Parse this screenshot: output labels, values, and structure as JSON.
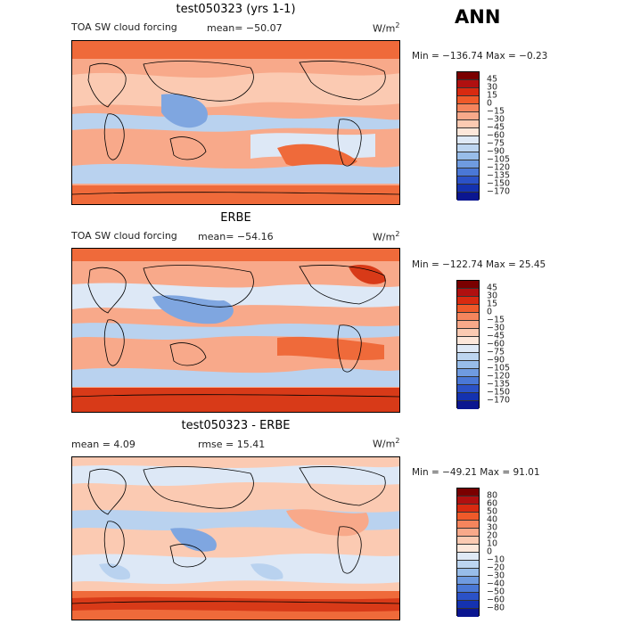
{
  "season": "ANN",
  "unit_prefix": "W/m",
  "unit_exp": "2",
  "panels": [
    {
      "title": "test050323 (yrs 1-1)",
      "left_label": "TOA SW cloud forcing",
      "stat": "mean= −50.07",
      "minmax": "Min = −136.74 Max =  −0.23",
      "colorbar": {
        "labels": [
          "45",
          "30",
          "15",
          "0",
          "−15",
          "−30",
          "−45",
          "−60",
          "−75",
          "−90",
          "−105",
          "−120",
          "−135",
          "−150",
          "−170"
        ],
        "colors": [
          "#7a0000",
          "#b01010",
          "#d82a10",
          "#ef5a2a",
          "#f5855d",
          "#f8a98a",
          "#fbcab2",
          "#fde7da",
          "#dfe9f6",
          "#bdd5f0",
          "#98bde9",
          "#6f9be0",
          "#4a78d6",
          "#2b52c7",
          "#1432b0",
          "#0b1690"
        ]
      }
    },
    {
      "title": "ERBE",
      "left_label": "TOA SW cloud forcing",
      "stat": "mean= −54.16",
      "minmax": "Min = −122.74 Max =  25.45",
      "colorbar": {
        "labels": [
          "45",
          "30",
          "15",
          "0",
          "−15",
          "−30",
          "−45",
          "−60",
          "−75",
          "−90",
          "−105",
          "−120",
          "−135",
          "−150",
          "−170"
        ],
        "colors": [
          "#7a0000",
          "#b01010",
          "#d82a10",
          "#ef5a2a",
          "#f5855d",
          "#f8a98a",
          "#fbcab2",
          "#fde7da",
          "#dfe9f6",
          "#bdd5f0",
          "#98bde9",
          "#6f9be0",
          "#4a78d6",
          "#2b52c7",
          "#1432b0",
          "#0b1690"
        ]
      }
    },
    {
      "title": "test050323 - ERBE",
      "left_label": "mean =    4.09",
      "stat": "rmse =  15.41",
      "minmax": "Min = −49.21 Max =  91.01",
      "colorbar": {
        "labels": [
          "80",
          "60",
          "50",
          "40",
          "30",
          "20",
          "10",
          "0",
          "−10",
          "−20",
          "−30",
          "−40",
          "−50",
          "−60",
          "−80"
        ],
        "colors": [
          "#7a0000",
          "#b01010",
          "#d82a10",
          "#ef5a2a",
          "#f5855d",
          "#f8a98a",
          "#fbcab2",
          "#fde7da",
          "#dfe9f6",
          "#bdd5f0",
          "#98bde9",
          "#6f9be0",
          "#4a78d6",
          "#2b52c7",
          "#1432b0",
          "#0b1690"
        ]
      }
    }
  ],
  "map_colors": {
    "ocean_blue": "#b9d2ef",
    "light_blue": "#dde8f6",
    "deep_blue": "#7fa6e0",
    "peach": "#fbcab2",
    "salmon": "#f8a98a",
    "orange": "#ef6a3a",
    "red": "#d83a18",
    "coast": "#000000"
  }
}
